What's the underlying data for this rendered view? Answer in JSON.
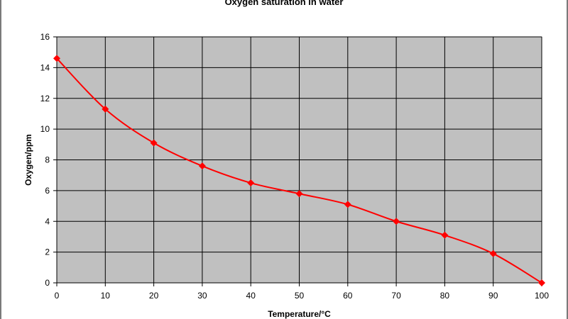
{
  "chart_data": {
    "type": "line",
    "title": "Oxygen saturation in water",
    "xlabel": "Temperature/°C",
    "ylabel": "Oxygen/ppm",
    "xlim": [
      0,
      100
    ],
    "ylim": [
      0,
      16
    ],
    "x_ticks": [
      0,
      10,
      20,
      30,
      40,
      50,
      60,
      70,
      80,
      90,
      100
    ],
    "y_ticks": [
      0,
      2,
      4,
      6,
      8,
      10,
      12,
      14,
      16
    ],
    "grid": true,
    "legend": "none",
    "series": [
      {
        "x": [
          0,
          10,
          20,
          30,
          40,
          50,
          60,
          70,
          80,
          90,
          100
        ],
        "values": [
          14.6,
          11.3,
          9.1,
          7.6,
          6.5,
          5.8,
          5.1,
          4.0,
          3.1,
          1.9,
          0
        ],
        "color": "#ff0000",
        "marker": "diamond"
      }
    ],
    "colors": {
      "plot_background": "#c0c0c0",
      "grid": "#000000",
      "series": "#ff0000"
    }
  }
}
